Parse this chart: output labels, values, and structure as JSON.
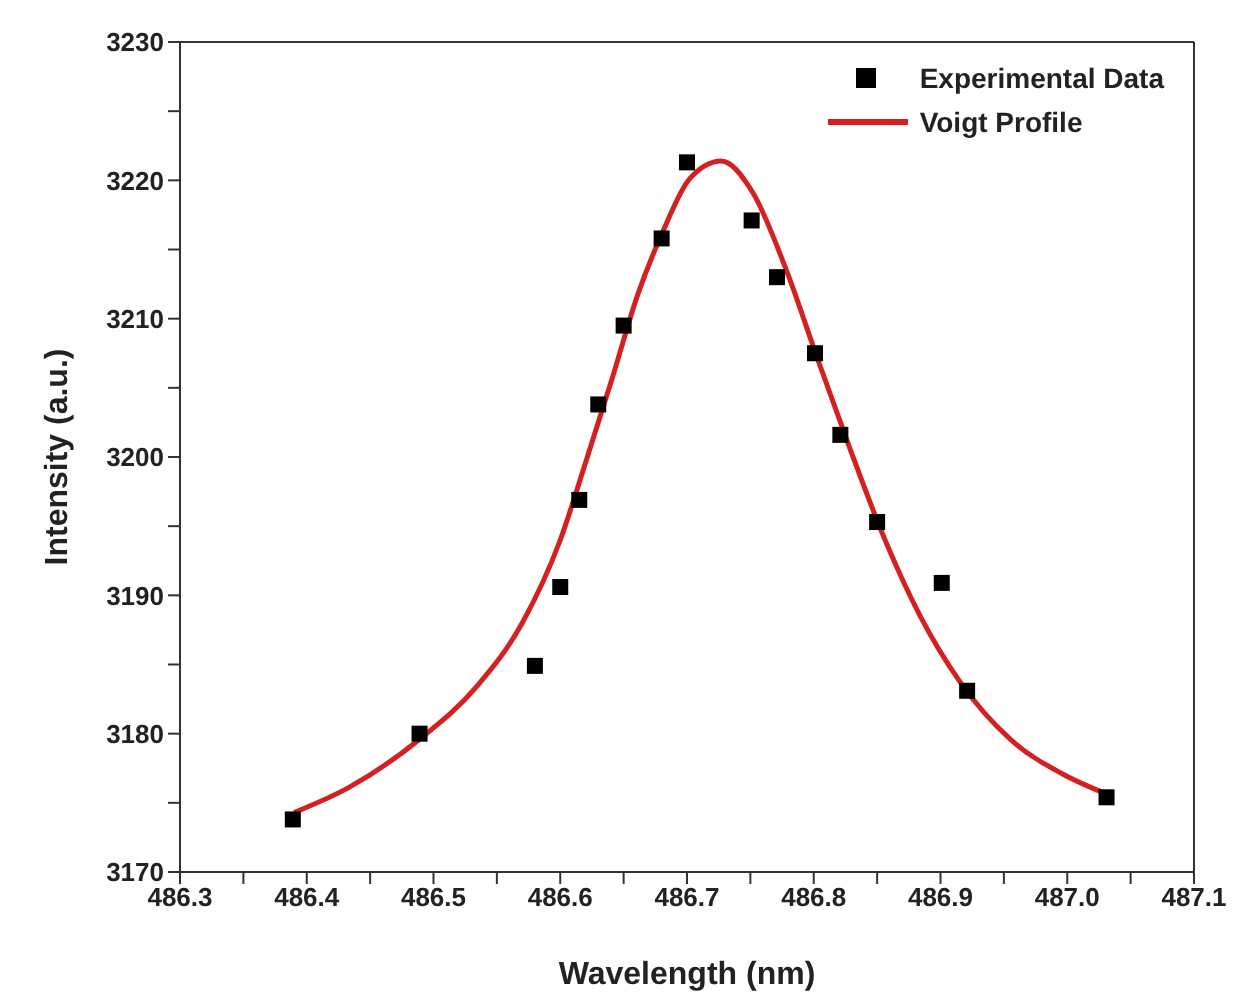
{
  "chart_data": {
    "type": "scatter",
    "xlabel": "Wavelength (nm)",
    "ylabel": "Intensity (a.u.)",
    "xlim": [
      486.3,
      487.1
    ],
    "xticks": [
      486.3,
      {
        "value": 486.35,
        "label": null
      },
      486.4,
      {
        "value": 486.45,
        "label": null
      },
      486.5,
      {
        "value": 486.55,
        "label": null
      },
      486.6,
      {
        "value": 486.65,
        "label": null
      },
      486.7,
      {
        "value": 486.75,
        "label": null
      },
      486.8,
      {
        "value": 486.85,
        "label": null
      },
      486.9,
      {
        "value": 486.95,
        "label": null
      },
      {
        "value": 487.0,
        "label": "487.0"
      },
      {
        "value": 487.05,
        "label": null
      },
      487.1
    ],
    "ylim": [
      3170,
      3230
    ],
    "yticks": [
      3170,
      {
        "value": 3175,
        "label": null
      },
      3180,
      {
        "value": 3185,
        "label": null
      },
      3190,
      {
        "value": 3195,
        "label": null
      },
      3200,
      {
        "value": 3205,
        "label": null
      },
      3210,
      {
        "value": 3215,
        "label": null
      },
      3220,
      {
        "value": 3225,
        "label": null
      },
      3230
    ],
    "grid": false,
    "legend": "top right",
    "series": [
      {
        "name": "Experimental Data",
        "type": "scatter",
        "marker": "square",
        "color": "#000000",
        "x": [
          486.389,
          486.489,
          486.58,
          486.6,
          486.615,
          486.63,
          486.65,
          486.68,
          486.7,
          486.751,
          486.771,
          486.801,
          486.821,
          486.85,
          486.901,
          486.921,
          487.031
        ],
        "values": [
          3173.8,
          3180.0,
          3184.9,
          3190.6,
          3196.9,
          3203.8,
          3209.5,
          3215.8,
          3221.3,
          3217.1,
          3213.0,
          3207.5,
          3201.6,
          3195.3,
          3190.9,
          3183.1,
          3175.4
        ]
      },
      {
        "name": "Voigt Profile",
        "type": "line",
        "marker": "none",
        "line_style": "solid",
        "color": "#d42020",
        "x": [
          486.39,
          486.433,
          486.489,
          486.534,
          486.57,
          486.6,
          486.62,
          486.641,
          486.661,
          486.681,
          486.702,
          486.727,
          486.752,
          486.778,
          486.803,
          486.829,
          486.854,
          486.884,
          486.915,
          486.955,
          486.996,
          487.032
        ],
        "values": [
          3174.3,
          3176.1,
          3179.6,
          3183.4,
          3188.0,
          3194.0,
          3199.6,
          3205.7,
          3211.7,
          3216.3,
          3220.1,
          3221.4,
          3219.1,
          3213.6,
          3207.1,
          3200.5,
          3194.5,
          3188.5,
          3183.8,
          3179.6,
          3177.1,
          3175.6
        ]
      }
    ]
  }
}
